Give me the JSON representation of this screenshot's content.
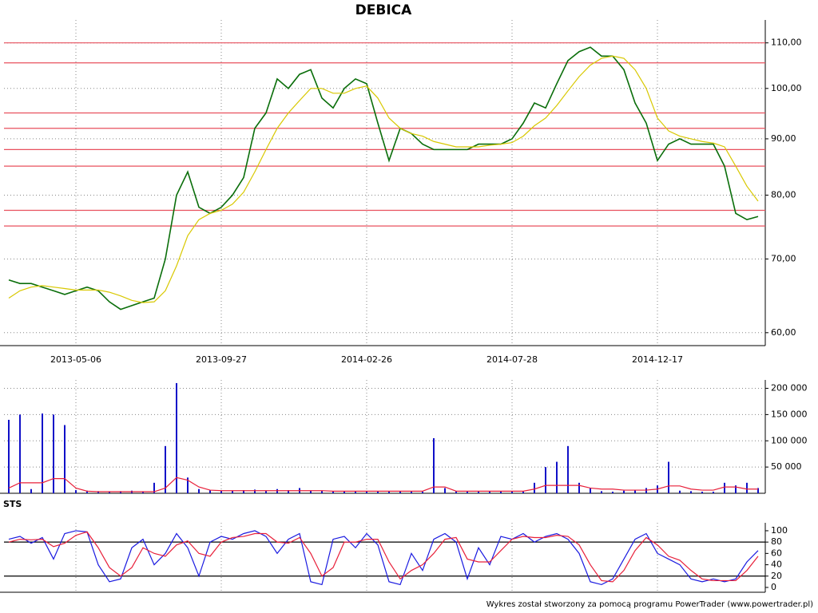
{
  "chart_data": [
    {
      "type": "line",
      "title": "DEBICA",
      "log_y": true,
      "grid": true,
      "categories": [
        null,
        null,
        null,
        null,
        null,
        null,
        "2013-05-06",
        null,
        null,
        null,
        null,
        null,
        null,
        null,
        null,
        null,
        null,
        null,
        null,
        "2013-09-27",
        null,
        null,
        null,
        null,
        null,
        null,
        null,
        null,
        null,
        null,
        null,
        null,
        "2014-02-26",
        null,
        null,
        null,
        null,
        null,
        null,
        null,
        null,
        null,
        null,
        null,
        null,
        "2014-07-28",
        null,
        null,
        null,
        null,
        null,
        null,
        null,
        null,
        null,
        null,
        null,
        null,
        "2014-12-17",
        null,
        null,
        null,
        null,
        null,
        null,
        null,
        null,
        null
      ],
      "ylim": [
        58.4,
        115.4
      ],
      "yticks": [
        {
          "value": 60,
          "label": "60,00"
        },
        {
          "value": 70,
          "label": "70,00"
        },
        {
          "value": 80,
          "label": "80,00"
        },
        {
          "value": 90,
          "label": "90,00"
        },
        {
          "value": 100,
          "label": "100,00"
        },
        {
          "value": 110,
          "label": "110,00"
        }
      ],
      "levels": [
        110,
        105.5,
        95,
        92,
        88,
        85,
        77.5,
        75
      ],
      "level_color": "#e8505e",
      "series": [
        {
          "color": "#0a6e0a",
          "values": [
            67,
            66.5,
            66.5,
            66,
            65.5,
            65,
            65.5,
            66,
            65.5,
            64,
            63,
            63.5,
            64,
            64.5,
            70,
            80,
            84,
            78,
            77,
            78,
            80,
            83,
            92,
            95,
            102,
            100,
            103,
            104,
            98,
            96,
            100,
            102,
            101,
            93,
            86,
            92,
            91,
            89,
            88,
            88,
            88,
            88,
            89,
            89,
            89,
            90,
            93,
            97,
            96,
            101,
            106,
            108,
            109,
            107,
            107,
            104,
            97,
            93,
            86,
            89,
            90,
            89,
            89,
            89,
            85,
            77,
            76,
            76.5
          ]
        },
        {
          "color": "#d8c800",
          "values": [
            64.5,
            65.5,
            66,
            66.2,
            66,
            65.8,
            65.6,
            65.6,
            65.6,
            65.3,
            64.8,
            64.2,
            63.9,
            64,
            65.5,
            69,
            73.5,
            76,
            77,
            77.5,
            78.5,
            80.5,
            84,
            88,
            92,
            95,
            97.5,
            100,
            100,
            99,
            99,
            100,
            100.5,
            98,
            94,
            92,
            91,
            90.5,
            89.5,
            89,
            88.5,
            88.5,
            88.5,
            88.8,
            89,
            89.3,
            90.5,
            92.5,
            94,
            96.5,
            99.5,
            102.5,
            105,
            106.5,
            107,
            106.5,
            104,
            100,
            94,
            91.5,
            90.5,
            90,
            89.5,
            89.2,
            88.5,
            85,
            81.5,
            79
          ]
        }
      ]
    },
    {
      "type": "bar",
      "grid": true,
      "ylim": [
        0,
        216000
      ],
      "yticks": [
        {
          "value": 50000,
          "label": "50 000"
        },
        {
          "value": 100000,
          "label": "100 000"
        },
        {
          "value": 150000,
          "label": "150 000"
        },
        {
          "value": 200000,
          "label": "200 000"
        }
      ],
      "series": [
        {
          "type": "bar",
          "color": "#1010c8",
          "values": [
            140000,
            150000,
            8000,
            152000,
            150000,
            130000,
            6000,
            5000,
            4000,
            3000,
            4000,
            5000,
            3000,
            20000,
            90000,
            210000,
            30000,
            8000,
            6000,
            5000,
            5000,
            6000,
            7000,
            5000,
            8000,
            6000,
            10000,
            5000,
            5000,
            4000,
            4000,
            3000,
            4000,
            3000,
            3000,
            4000,
            3000,
            3000,
            105000,
            10000,
            4000,
            3000,
            3000,
            3000,
            3000,
            4000,
            3000,
            20000,
            50000,
            60000,
            90000,
            20000,
            10000,
            4000,
            3000,
            5000,
            6000,
            10000,
            15000,
            60000,
            5000,
            4000,
            3000,
            3000,
            20000,
            15000,
            20000,
            10000
          ]
        },
        {
          "type": "line",
          "color": "#e8203a",
          "values": [
            10000,
            20000,
            20000,
            20000,
            28000,
            28000,
            10000,
            4000,
            3000,
            3000,
            3000,
            3000,
            3000,
            3000,
            10000,
            30000,
            25000,
            12000,
            6000,
            5000,
            5000,
            5000,
            5000,
            5000,
            5000,
            5000,
            5000,
            5000,
            5000,
            4000,
            4000,
            4000,
            4000,
            4000,
            4000,
            4000,
            4000,
            4000,
            12000,
            12000,
            4000,
            4000,
            4000,
            4000,
            4000,
            4000,
            4000,
            8000,
            15000,
            15000,
            15000,
            15000,
            10000,
            8000,
            8000,
            6000,
            6000,
            6000,
            8000,
            14000,
            14000,
            8000,
            6000,
            6000,
            12000,
            12000,
            8000,
            8000
          ]
        }
      ]
    },
    {
      "type": "line",
      "title": "STS",
      "grid": false,
      "ylim": [
        -8.5,
        114
      ],
      "yticks": [
        0,
        20,
        40,
        60,
        80,
        100
      ],
      "levels": [
        20,
        80
      ],
      "level_color": "#000000",
      "series": [
        {
          "color": "#1a1ae0",
          "values": [
            85,
            90,
            78,
            88,
            50,
            95,
            100,
            98,
            40,
            10,
            15,
            70,
            85,
            40,
            60,
            95,
            70,
            20,
            80,
            90,
            85,
            95,
            100,
            90,
            60,
            85,
            95,
            10,
            5,
            85,
            90,
            70,
            95,
            75,
            10,
            5,
            60,
            30,
            85,
            95,
            80,
            15,
            70,
            40,
            90,
            85,
            95,
            80,
            90,
            95,
            85,
            60,
            10,
            5,
            15,
            50,
            85,
            95,
            60,
            50,
            40,
            15,
            10,
            15,
            10,
            15,
            45,
            65
          ]
        },
        {
          "color": "#e8203a",
          "values": [
            80,
            85,
            84,
            85,
            72,
            78,
            92,
            98,
            70,
            35,
            20,
            35,
            70,
            60,
            55,
            75,
            82,
            60,
            55,
            80,
            88,
            90,
            95,
            95,
            80,
            78,
            88,
            60,
            20,
            35,
            80,
            80,
            85,
            85,
            45,
            15,
            30,
            40,
            60,
            85,
            88,
            50,
            45,
            45,
            65,
            85,
            90,
            88,
            88,
            92,
            90,
            75,
            40,
            12,
            10,
            30,
            65,
            88,
            75,
            55,
            48,
            30,
            15,
            12,
            12,
            12,
            30,
            55
          ]
        }
      ]
    }
  ],
  "footer": "Wykres został stworzony za pomocą programu PowerTrader (www.powertrader.pl)"
}
